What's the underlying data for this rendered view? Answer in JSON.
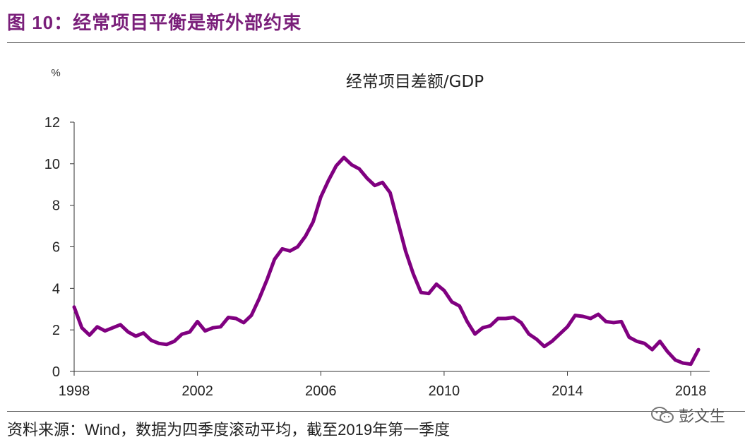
{
  "header": {
    "figure_label": "图 10",
    "separator": "：",
    "title": "经常项目平衡是新外部约束"
  },
  "chart_data": {
    "type": "line",
    "title": "经常项目差额/GDP",
    "unit_label": "%",
    "xlabel": "",
    "ylabel": "%",
    "xlim": [
      1998,
      2018.5
    ],
    "ylim": [
      0,
      12
    ],
    "yticks": [
      "0",
      "2",
      "4",
      "6",
      "8",
      "10",
      "12"
    ],
    "xticks": [
      "1998",
      "2002",
      "2006",
      "2010",
      "2014",
      "2018"
    ],
    "series_color": "#800080",
    "series": [
      {
        "name": "经常项目差额/GDP",
        "x": [
          1998.0,
          1998.25,
          1998.5,
          1998.75,
          1999.0,
          1999.25,
          1999.5,
          1999.75,
          2000.0,
          2000.25,
          2000.5,
          2000.75,
          2001.0,
          2001.25,
          2001.5,
          2001.75,
          2002.0,
          2002.25,
          2002.5,
          2002.75,
          2003.0,
          2003.25,
          2003.5,
          2003.75,
          2004.0,
          2004.25,
          2004.5,
          2004.75,
          2005.0,
          2005.25,
          2005.5,
          2005.75,
          2006.0,
          2006.25,
          2006.5,
          2006.75,
          2007.0,
          2007.25,
          2007.5,
          2007.75,
          2008.0,
          2008.25,
          2008.5,
          2008.75,
          2009.0,
          2009.25,
          2009.5,
          2009.75,
          2010.0,
          2010.25,
          2010.5,
          2010.75,
          2011.0,
          2011.25,
          2011.5,
          2011.75,
          2012.0,
          2012.25,
          2012.5,
          2012.75,
          2013.0,
          2013.25,
          2013.5,
          2013.75,
          2014.0,
          2014.25,
          2014.5,
          2014.75,
          2015.0,
          2015.25,
          2015.5,
          2015.75,
          2016.0,
          2016.25,
          2016.5,
          2016.75,
          2017.0,
          2017.25,
          2017.5,
          2017.75,
          2018.0,
          2018.25
        ],
        "values": [
          3.1,
          2.1,
          1.75,
          2.15,
          1.95,
          2.1,
          2.25,
          1.9,
          1.7,
          1.85,
          1.5,
          1.35,
          1.3,
          1.45,
          1.8,
          1.9,
          2.4,
          1.95,
          2.1,
          2.15,
          2.6,
          2.55,
          2.35,
          2.7,
          3.5,
          4.4,
          5.4,
          5.9,
          5.8,
          6.0,
          6.5,
          7.2,
          8.4,
          9.2,
          9.9,
          10.3,
          9.95,
          9.75,
          9.3,
          8.95,
          9.1,
          8.6,
          7.2,
          5.8,
          4.7,
          3.8,
          3.75,
          4.2,
          3.9,
          3.35,
          3.15,
          2.4,
          1.8,
          2.1,
          2.2,
          2.55,
          2.55,
          2.6,
          2.35,
          1.8,
          1.55,
          1.2,
          1.45,
          1.8,
          2.15,
          2.7,
          2.65,
          2.55,
          2.75,
          2.4,
          2.35,
          2.4,
          1.65,
          1.45,
          1.35,
          1.05,
          1.45,
          0.95,
          0.55,
          0.4,
          0.35,
          1.05
        ]
      }
    ]
  },
  "footer": {
    "source_label": "资料来源：",
    "source_name": "Wind",
    "source_note_a": "，数据为四季度滚动平均，截至",
    "source_year": "2019",
    "source_note_b": "年第一季度",
    "watermark_text": "彭文生"
  }
}
